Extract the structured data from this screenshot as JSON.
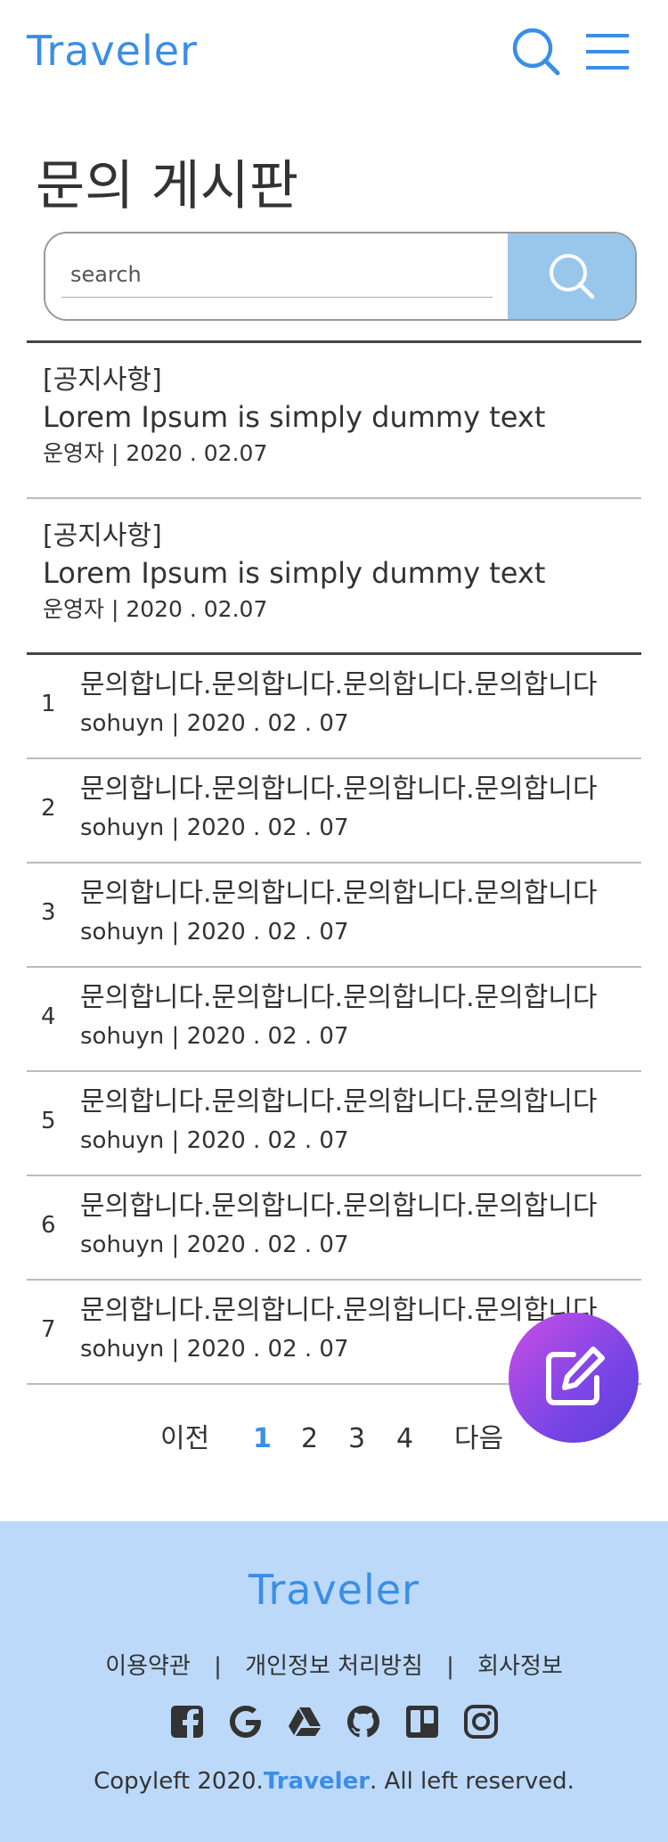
{
  "header": {
    "logo": "Traveler"
  },
  "page": {
    "title": "문의 게시판"
  },
  "search": {
    "placeholder": "search"
  },
  "notices": [
    {
      "tag": "[공지사항]",
      "title": "Lorem Ipsum is simply dummy text",
      "meta": "운영자 | 2020 . 02.07"
    },
    {
      "tag": "[공지사항]",
      "title": "Lorem Ipsum is simply dummy text",
      "meta": "운영자 | 2020 . 02.07"
    }
  ],
  "posts": [
    {
      "num": "1",
      "title": "문의합니다.문의합니다.문의합니다.문의합니다",
      "meta": "sohuyn | 2020 . 02 . 07"
    },
    {
      "num": "2",
      "title": "문의합니다.문의합니다.문의합니다.문의합니다",
      "meta": "sohuyn | 2020 . 02 . 07"
    },
    {
      "num": "3",
      "title": "문의합니다.문의합니다.문의합니다.문의합니다",
      "meta": "sohuyn | 2020 . 02 . 07"
    },
    {
      "num": "4",
      "title": "문의합니다.문의합니다.문의합니다.문의합니다",
      "meta": "sohuyn | 2020 . 02 . 07"
    },
    {
      "num": "5",
      "title": "문의합니다.문의합니다.문의합니다.문의합니다",
      "meta": "sohuyn | 2020 . 02 . 07"
    },
    {
      "num": "6",
      "title": "문의합니다.문의합니다.문의합니다.문의합니다",
      "meta": "sohuyn | 2020 . 02 . 07"
    },
    {
      "num": "7",
      "title": "문의합니다.문의합니다.문의합니다.문의합니다",
      "meta": "sohuyn | 2020 . 02 . 07"
    }
  ],
  "pagination": {
    "prev": "이전",
    "pages": [
      "1",
      "2",
      "3",
      "4"
    ],
    "next": "다음"
  },
  "footer": {
    "logo": "Traveler",
    "links": [
      "이용약관",
      "개인정보 처리방침",
      "회사정보"
    ],
    "separator": "|",
    "copyright_prefix": "Copyleft 2020.",
    "copyright_brand": "Traveler",
    "copyright_suffix": ". All left reserved."
  },
  "icons": {
    "header_search": "search-icon",
    "header_menu": "hamburger-menu-icon",
    "search_button": "search-icon",
    "fab": "edit-icon",
    "social": [
      "facebook-icon",
      "google-icon",
      "google-drive-icon",
      "github-icon",
      "trello-icon",
      "instagram-icon"
    ]
  },
  "colors": {
    "brand": "#3a8ee6",
    "search_button": "#99c7ec",
    "footer_bg": "#bcd9fa",
    "fab_start": "#c94ee6",
    "fab_end": "#5b3fd8"
  }
}
